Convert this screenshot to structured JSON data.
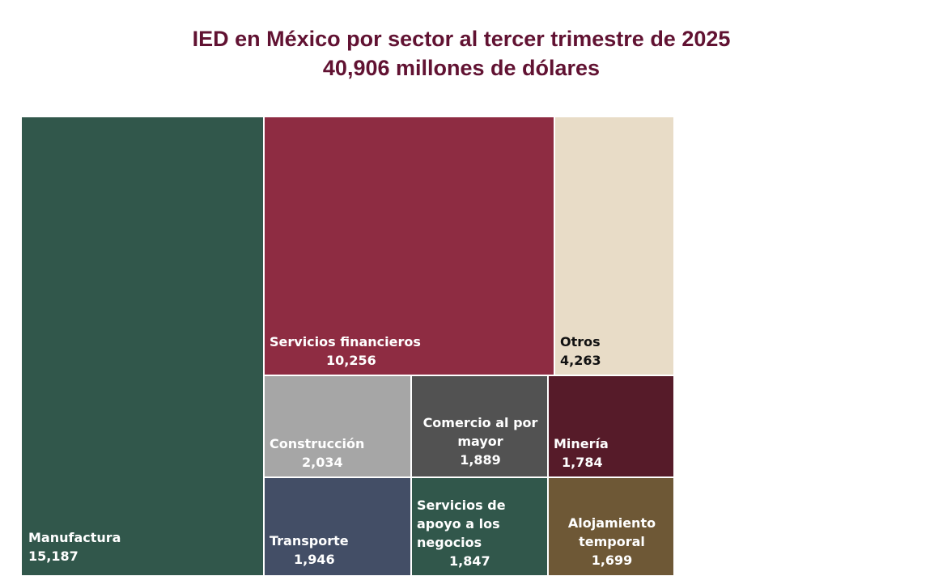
{
  "chart_data": {
    "type": "treemap",
    "title": "IED en México por sector al tercer trimestre de 2025",
    "subtitle": "40,906 millones de dólares",
    "items": [
      {
        "name": "Manufactura",
        "label_lines": [
          "Manufactura"
        ],
        "value": 15187,
        "value_label": "15,187",
        "color": "#31574B",
        "text_color": "#ffffff"
      },
      {
        "name": "Servicios financieros",
        "label_lines": [
          "Servicios financieros"
        ],
        "value": 10256,
        "value_label": "10,256",
        "color": "#8E2C42",
        "text_color": "#ffffff"
      },
      {
        "name": "Otros",
        "label_lines": [
          "Otros"
        ],
        "value": 4263,
        "value_label": "4,263",
        "color": "#E8DCC7",
        "text_color": "#111111"
      },
      {
        "name": "Construcción",
        "label_lines": [
          "Construcción"
        ],
        "value": 2034,
        "value_label": "2,034",
        "color": "#A6A6A6",
        "text_color": "#ffffff"
      },
      {
        "name": "Comercio al por mayor",
        "label_lines": [
          "Comercio al por",
          "mayor"
        ],
        "value": 1889,
        "value_label": "1,889",
        "color": "#525252",
        "text_color": "#ffffff"
      },
      {
        "name": "Minería",
        "label_lines": [
          "Minería"
        ],
        "value": 1784,
        "value_label": "1,784",
        "color": "#561B29",
        "text_color": "#ffffff"
      },
      {
        "name": "Transporte",
        "label_lines": [
          "Transporte"
        ],
        "value": 1946,
        "value_label": "1,946",
        "color": "#434E66",
        "text_color": "#ffffff"
      },
      {
        "name": "Servicios de apoyo a los negocios",
        "label_lines": [
          "Servicios de",
          "apoyo a los",
          "negocios"
        ],
        "value": 1847,
        "value_label": "1,847",
        "color": "#31574B",
        "text_color": "#ffffff"
      },
      {
        "name": "Alojamiento temporal",
        "label_lines": [
          "Alojamiento",
          "temporal"
        ],
        "value": 1699,
        "value_label": "1,699",
        "color": "#6E5836",
        "text_color": "#ffffff"
      }
    ]
  }
}
